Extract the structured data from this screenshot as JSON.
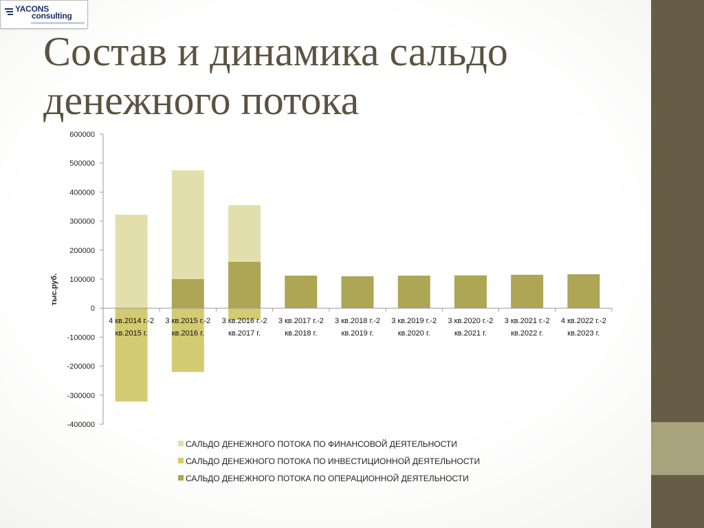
{
  "logo": {
    "line1": "YACONS",
    "line2": "consulting"
  },
  "slide": {
    "title": "Состав и динамика сальдо денежного потока"
  },
  "colors": {
    "financial": "#e2dfac",
    "investment": "#d3cb71",
    "operational": "#aca655",
    "sidebar": "#675d47",
    "sidebar_band": "#a8a27d",
    "title": "#5b5340"
  },
  "chart_data": {
    "type": "bar",
    "stacked": true,
    "ylabel": "тыс.руб.",
    "xlabel": "",
    "ylim": [
      -400000,
      600000
    ],
    "yticks": [
      "600000",
      "500000",
      "400000",
      "300000",
      "200000",
      "100000",
      "0",
      "-100000",
      "-200000",
      "-300000",
      "-400000"
    ],
    "grid": false,
    "legend_position": "bottom",
    "categories": [
      [
        "4 кв.2014 г.-2",
        "кв.2015 г."
      ],
      [
        "3 кв.2015 г.-2",
        "кв.2016 г."
      ],
      [
        "3 кв.2016 г.-2",
        "кв.2017 г."
      ],
      [
        "3 кв.2017 г.-2",
        "кв.2018 г."
      ],
      [
        "3 кв.2018 г.-2",
        "кв.2019 г."
      ],
      [
        "3 кв.2019 г.-2",
        "кв.2020 г."
      ],
      [
        "3 кв.2020 г.-2",
        "кв.2021 г."
      ],
      [
        "3 кв.2021 г.-2",
        "кв.2022 г."
      ],
      [
        "4 кв.2022 г.-2",
        "кв.2023 г."
      ]
    ],
    "series": [
      {
        "name": "САЛЬДО ДЕНЕЖНОГО ПОТОКА ПО ОПЕРАЦИОННОЙ ДЕЯТЕЛЬНОСТИ",
        "key": "operational",
        "values": [
          0,
          100000,
          160000,
          112000,
          110000,
          112000,
          113000,
          115000,
          117000
        ]
      },
      {
        "name": "САЛЬДО ДЕНЕЖНОГО ПОТОКА ПО ИНВЕСТИЦИОННОЙ  ДЕЯТЕЛЬНОСТИ",
        "key": "investment",
        "values": [
          -322000,
          -220000,
          -40000,
          0,
          0,
          0,
          0,
          0,
          0
        ]
      },
      {
        "name": "САЛЬДО ДЕНЕЖНОГО ПОТОКА ПО ФИНАНСОВОЙ  ДЕЯТЕЛЬНОСТИ",
        "key": "financial",
        "values": [
          322000,
          375000,
          195000,
          0,
          0,
          0,
          0,
          0,
          0
        ]
      }
    ],
    "legend_order": [
      "financial",
      "investment",
      "operational"
    ]
  }
}
